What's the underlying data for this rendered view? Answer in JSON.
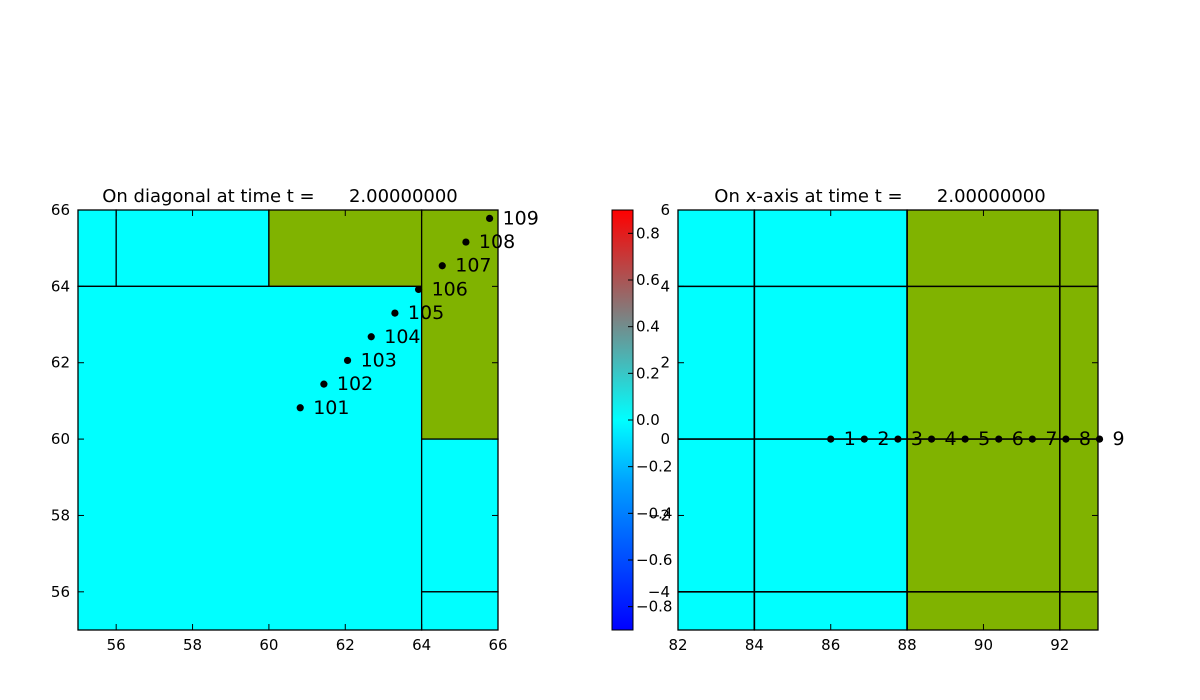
{
  "colors": {
    "cyan": "#00ffff",
    "olive": "#80b300",
    "grid_line": "#000000",
    "point": "#000000"
  },
  "chart_data": [
    {
      "type": "scatter",
      "title": "On diagonal at time t =      2.00000000",
      "xlim": [
        55,
        66
      ],
      "ylim": [
        55,
        66
      ],
      "xticks": [
        "56",
        "58",
        "60",
        "62",
        "64",
        "66"
      ],
      "yticks": [
        "56",
        "58",
        "60",
        "62",
        "64",
        "66"
      ],
      "cells": [
        {
          "x0": 55,
          "x1": 56,
          "y0": 64,
          "y1": 66,
          "color": "cyan"
        },
        {
          "x0": 56,
          "x1": 60,
          "y0": 64,
          "y1": 66,
          "color": "cyan"
        },
        {
          "x0": 60,
          "x1": 64,
          "y0": 64,
          "y1": 66,
          "color": "olive"
        },
        {
          "x0": 55,
          "x1": 64,
          "y0": 55,
          "y1": 64,
          "color": "cyan"
        },
        {
          "x0": 64,
          "x1": 66,
          "y0": 60,
          "y1": 66,
          "color": "olive"
        },
        {
          "x0": 64,
          "x1": 66,
          "y0": 56,
          "y1": 60,
          "color": "cyan"
        },
        {
          "x0": 64,
          "x1": 66,
          "y0": 55,
          "y1": 56,
          "color": "cyan"
        }
      ],
      "points": [
        {
          "label": "101",
          "x": 60.82,
          "y": 60.82
        },
        {
          "label": "102",
          "x": 61.44,
          "y": 61.44
        },
        {
          "label": "103",
          "x": 62.06,
          "y": 62.06
        },
        {
          "label": "104",
          "x": 62.68,
          "y": 62.68
        },
        {
          "label": "105",
          "x": 63.3,
          "y": 63.3
        },
        {
          "label": "106",
          "x": 63.92,
          "y": 63.92
        },
        {
          "label": "107",
          "x": 64.54,
          "y": 64.54
        },
        {
          "label": "108",
          "x": 65.16,
          "y": 65.16
        },
        {
          "label": "109",
          "x": 65.78,
          "y": 65.78
        }
      ]
    },
    {
      "type": "scatter",
      "title": "On x-axis at time t =      2.00000000",
      "xlim": [
        82,
        93
      ],
      "ylim": [
        -5,
        6
      ],
      "xticks": [
        "82",
        "84",
        "86",
        "88",
        "90",
        "92"
      ],
      "yticks": [
        "6",
        "4",
        "2",
        "0",
        "−2",
        "−4"
      ],
      "cells": [
        {
          "x0": 82,
          "x1": 84,
          "y0": -5,
          "y1": 6,
          "color": "cyan"
        },
        {
          "x0": 84,
          "x1": 88,
          "y0": -5,
          "y1": 6,
          "color": "cyan"
        },
        {
          "x0": 88,
          "x1": 92,
          "y0": -5,
          "y1": 6,
          "color": "olive"
        },
        {
          "x0": 92,
          "x1": 93,
          "y0": -5,
          "y1": 6,
          "color": "olive"
        }
      ],
      "hlines": [
        4,
        0,
        -4
      ],
      "vlines": [
        84,
        88,
        92
      ],
      "points": [
        {
          "label": "1",
          "x": 86.0,
          "y": 0
        },
        {
          "label": "2",
          "x": 86.88,
          "y": 0
        },
        {
          "label": "3",
          "x": 87.76,
          "y": 0
        },
        {
          "label": "4",
          "x": 88.64,
          "y": 0
        },
        {
          "label": "5",
          "x": 89.52,
          "y": 0
        },
        {
          "label": "6",
          "x": 90.4,
          "y": 0
        },
        {
          "label": "7",
          "x": 91.28,
          "y": 0
        },
        {
          "label": "8",
          "x": 92.16,
          "y": 0
        },
        {
          "label": "9",
          "x": 93.04,
          "y": 0
        }
      ]
    }
  ],
  "colorbar": {
    "range": [
      -0.9,
      0.9
    ],
    "ticks": [
      "0.8",
      "0.6",
      "0.4",
      "0.2",
      "0.0",
      "−0.2",
      "−0.4",
      "−0.6",
      "−0.8"
    ],
    "tick_values": [
      0.8,
      0.6,
      0.4,
      0.2,
      0.0,
      -0.2,
      -0.4,
      -0.6,
      -0.8
    ],
    "colors": [
      "#0000ff",
      "#00a0ff",
      "#00ffff",
      "#ff0000"
    ]
  }
}
